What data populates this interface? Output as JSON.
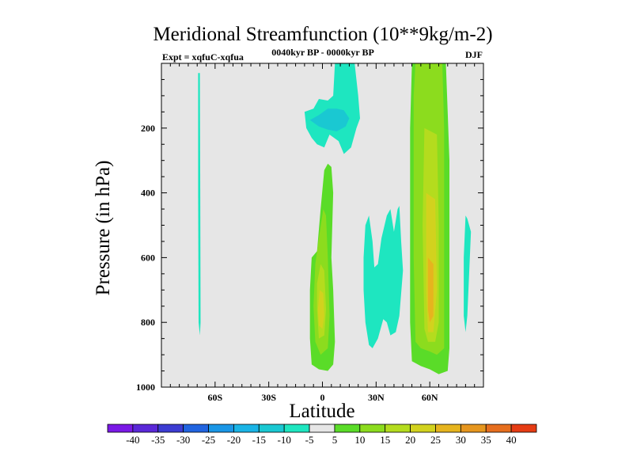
{
  "chart_data": {
    "type": "contour",
    "title": "Meridional Streamfunction (10**9kg/m-2)",
    "left_subtitle": "Expt = xqfuC-xqfua",
    "center_subtitle": "0040kyr BP - 0000kyr BP",
    "right_subtitle": "DJF",
    "xlabel": "Latitude",
    "ylabel": "Pressure (in hPa)",
    "xlim": [
      -90,
      90
    ],
    "ylim": [
      1000,
      0
    ],
    "x_ticks": [
      {
        "value": -60,
        "label": "60S"
      },
      {
        "value": -30,
        "label": "30S"
      },
      {
        "value": 0,
        "label": "0"
      },
      {
        "value": 30,
        "label": "30N"
      },
      {
        "value": 60,
        "label": "60N"
      }
    ],
    "y_ticks": [
      {
        "value": 200,
        "label": "200"
      },
      {
        "value": 400,
        "label": "400"
      },
      {
        "value": 600,
        "label": "600"
      },
      {
        "value": 800,
        "label": "800"
      },
      {
        "value": 1000,
        "label": "1000"
      }
    ],
    "background_color": "#e6e6e6",
    "colorbar": {
      "levels": [
        "-40",
        "-35",
        "-30",
        "-25",
        "-20",
        "-15",
        "-10",
        "-5",
        "5",
        "10",
        "15",
        "20",
        "25",
        "30",
        "35",
        "40"
      ],
      "colors": [
        "#7a19e6",
        "#5a28d8",
        "#3c3cd2",
        "#2164e0",
        "#1a96e6",
        "#1ab4e6",
        "#1ac8d2",
        "#1ee6c0",
        "#e6e6e6",
        "#5adc28",
        "#8cdc1e",
        "#b4dc1e",
        "#d2d21e",
        "#e6b41e",
        "#e6961e",
        "#e66e1e",
        "#e63c14"
      ]
    },
    "regions": [
      {
        "name": "sh-narrow-negative",
        "color": "#1ee6c0",
        "points": [
          [
            -69.5,
            30
          ],
          [
            -68.5,
            30
          ],
          [
            -68.3,
            400
          ],
          [
            -68.1,
            800
          ],
          [
            -68.5,
            840
          ],
          [
            -69.2,
            800
          ],
          [
            -69.5,
            400
          ]
        ]
      },
      {
        "name": "equatorial-upper-negative",
        "color": "#1ee6c0",
        "points": [
          [
            -10,
            150
          ],
          [
            -5,
            140
          ],
          [
            -2,
            110
          ],
          [
            3,
            115
          ],
          [
            6,
            100
          ],
          [
            7,
            0
          ],
          [
            18,
            0
          ],
          [
            20,
            100
          ],
          [
            21,
            170
          ],
          [
            19,
            200
          ],
          [
            16,
            260
          ],
          [
            12,
            280
          ],
          [
            9,
            240
          ],
          [
            4,
            220
          ],
          [
            1,
            260
          ],
          [
            -3,
            250
          ],
          [
            -6,
            230
          ],
          [
            -9,
            200
          ]
        ]
      },
      {
        "name": "equatorial-upper-core",
        "color": "#1ac8d2",
        "points": [
          [
            -7,
            175
          ],
          [
            -2,
            160
          ],
          [
            3,
            140
          ],
          [
            8,
            140
          ],
          [
            12,
            145
          ],
          [
            15,
            170
          ],
          [
            13,
            195
          ],
          [
            8,
            210
          ],
          [
            3,
            205
          ],
          [
            -2,
            195
          ]
        ]
      },
      {
        "name": "equatorial-lower-positive-outer",
        "color": "#5adc28",
        "points": [
          [
            3,
            310
          ],
          [
            5,
            320
          ],
          [
            6,
            400
          ],
          [
            5,
            600
          ],
          [
            6,
            700
          ],
          [
            7,
            860
          ],
          [
            6,
            930
          ],
          [
            3,
            950
          ],
          [
            -2,
            945
          ],
          [
            -6,
            930
          ],
          [
            -7,
            850
          ],
          [
            -7,
            700
          ],
          [
            -6,
            600
          ],
          [
            -3,
            580
          ],
          [
            -1,
            450
          ],
          [
            1,
            330
          ]
        ]
      },
      {
        "name": "equatorial-lower-positive-mid",
        "color": "#8cdc1e",
        "points": [
          [
            0.5,
            450
          ],
          [
            2,
            470
          ],
          [
            3,
            600
          ],
          [
            4,
            780
          ],
          [
            3,
            880
          ],
          [
            -1,
            900
          ],
          [
            -4,
            860
          ],
          [
            -5,
            750
          ],
          [
            -4,
            620
          ],
          [
            -2,
            540
          ]
        ]
      },
      {
        "name": "equatorial-lower-positive-inner",
        "color": "#b4dc1e",
        "points": [
          [
            -1,
            620
          ],
          [
            1,
            640
          ],
          [
            2,
            760
          ],
          [
            1,
            840
          ],
          [
            -2,
            850
          ],
          [
            -3,
            760
          ],
          [
            -3,
            680
          ]
        ]
      },
      {
        "name": "equatorial-lower-positive-core",
        "color": "#d2d21e",
        "points": [
          [
            -1.5,
            700
          ],
          [
            0.5,
            710
          ],
          [
            1,
            780
          ],
          [
            0,
            820
          ],
          [
            -2,
            810
          ],
          [
            -2.5,
            760
          ]
        ]
      },
      {
        "name": "nh-subtropical-negative",
        "color": "#1ee6c0",
        "points": [
          [
            24,
            500
          ],
          [
            26,
            470
          ],
          [
            28,
            550
          ],
          [
            29,
            630
          ],
          [
            31,
            620
          ],
          [
            33,
            540
          ],
          [
            36,
            470
          ],
          [
            38,
            450
          ],
          [
            40,
            520
          ],
          [
            42,
            450
          ],
          [
            43,
            440
          ],
          [
            44,
            550
          ],
          [
            45,
            640
          ],
          [
            43,
            780
          ],
          [
            41,
            830
          ],
          [
            38,
            840
          ],
          [
            36,
            800
          ],
          [
            34,
            790
          ],
          [
            31,
            850
          ],
          [
            28,
            880
          ],
          [
            26,
            870
          ],
          [
            24,
            800
          ],
          [
            23,
            700
          ],
          [
            23,
            600
          ]
        ]
      },
      {
        "name": "nh-midlat-positive-outer",
        "color": "#5adc28",
        "points": [
          [
            50,
            0
          ],
          [
            69,
            0
          ],
          [
            70,
            150
          ],
          [
            71,
            300
          ],
          [
            71,
            600
          ],
          [
            71,
            880
          ],
          [
            70,
            950
          ],
          [
            65,
            960
          ],
          [
            60,
            945
          ],
          [
            55,
            935
          ],
          [
            50,
            920
          ],
          [
            49,
            800
          ],
          [
            49,
            500
          ],
          [
            49,
            200
          ]
        ]
      },
      {
        "name": "nh-midlat-positive-mid",
        "color": "#8cdc1e",
        "points": [
          [
            52,
            0
          ],
          [
            54,
            0
          ],
          [
            56,
            0
          ],
          [
            67,
            0
          ],
          [
            68,
            200
          ],
          [
            68,
            500
          ],
          [
            68,
            880
          ],
          [
            64,
            900
          ],
          [
            60,
            890
          ],
          [
            55,
            880
          ],
          [
            52,
            860
          ],
          [
            51,
            600
          ],
          [
            51,
            300
          ],
          [
            51,
            100
          ]
        ]
      },
      {
        "name": "nh-midlat-positive-inner",
        "color": "#b4dc1e",
        "points": [
          [
            57,
            200
          ],
          [
            64,
            220
          ],
          [
            65,
            500
          ],
          [
            65,
            800
          ],
          [
            63,
            860
          ],
          [
            59,
            860
          ],
          [
            57,
            820
          ],
          [
            56,
            500
          ]
        ]
      },
      {
        "name": "nh-midlat-positive-core",
        "color": "#d2d21e",
        "points": [
          [
            58,
            400
          ],
          [
            63,
            420
          ],
          [
            64,
            700
          ],
          [
            62,
            830
          ],
          [
            59,
            830
          ],
          [
            58,
            700
          ]
        ]
      },
      {
        "name": "nh-midlat-positive-peak",
        "color": "#e6b41e",
        "points": [
          [
            59,
            600
          ],
          [
            62,
            620
          ],
          [
            62,
            780
          ],
          [
            60,
            800
          ],
          [
            59,
            760
          ]
        ]
      },
      {
        "name": "nh-polar-negative",
        "color": "#1ee6c0",
        "points": [
          [
            80,
            470
          ],
          [
            81,
            480
          ],
          [
            83,
            520
          ],
          [
            82,
            650
          ],
          [
            81,
            780
          ],
          [
            80,
            830
          ],
          [
            79,
            780
          ],
          [
            79,
            600
          ]
        ]
      }
    ]
  }
}
